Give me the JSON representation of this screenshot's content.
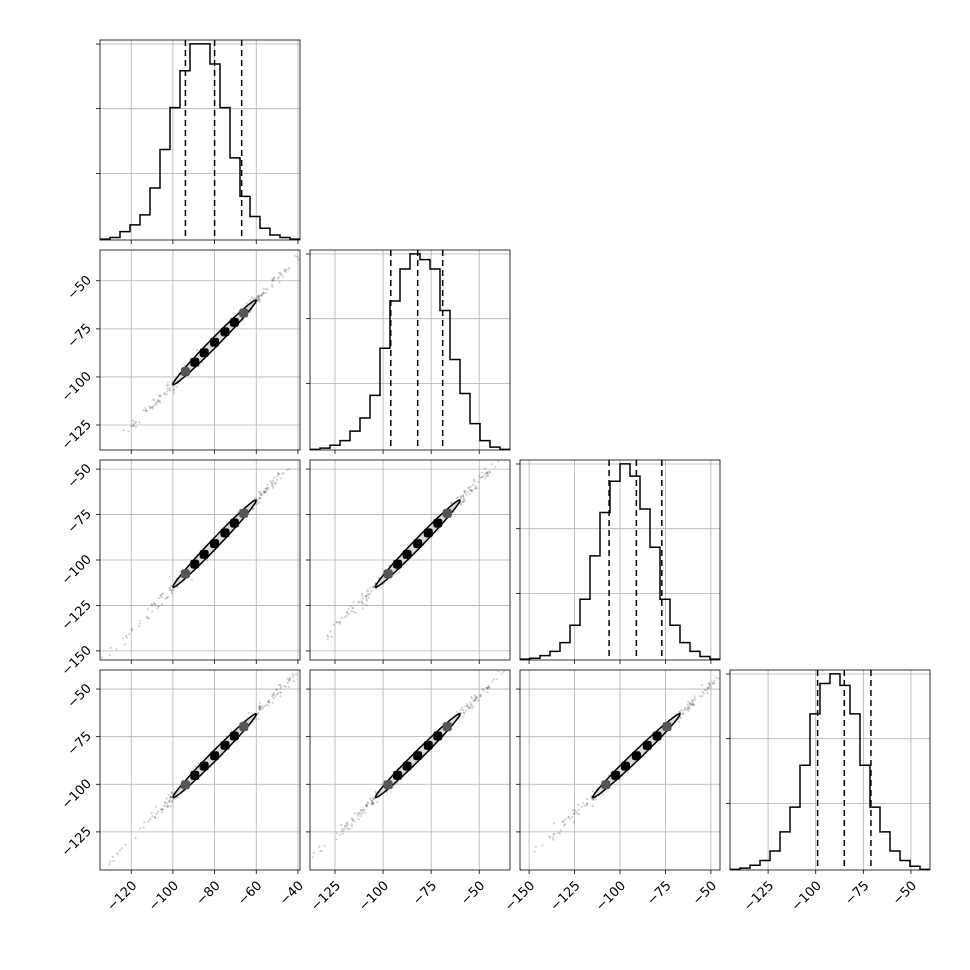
{
  "chart_data": {
    "type": "corner",
    "title": "",
    "parameters": [
      {
        "name": "",
        "center": -80,
        "sigma": 10,
        "hist_range": [
          -135,
          -39
        ],
        "ticks": [
          -120,
          -100,
          -80,
          -60,
          -40
        ],
        "tick_labels": [
          "−120",
          "−100",
          "−80",
          "−60",
          "−40"
        ],
        "quantiles": [
          -94,
          -80,
          -67
        ]
      },
      {
        "name": "",
        "center": -82,
        "sigma": 11,
        "hist_range": [
          -138,
          -34
        ],
        "ticks": [
          -125,
          -100,
          -75,
          -50
        ],
        "tick_labels": [
          "−125",
          "−100",
          "−75",
          "−50"
        ],
        "quantiles": [
          -96,
          -82,
          -69
        ]
      },
      {
        "name": "",
        "center": -91,
        "sigma": 12,
        "hist_range": [
          -155,
          -45
        ],
        "ticks": [
          -150,
          -125,
          -100,
          -75,
          -50
        ],
        "tick_labels": [
          "−150",
          "−125",
          "−100",
          "−75",
          "−50"
        ],
        "quantiles": [
          -106,
          -91,
          -77
        ]
      },
      {
        "name": "",
        "center": -85,
        "sigma": 11,
        "hist_range": [
          -145,
          -40
        ],
        "ticks": [
          -125,
          -100,
          -75,
          -50
        ],
        "tick_labels": [
          "−125",
          "−100",
          "−75",
          "−50"
        ],
        "quantiles": [
          -99,
          -85,
          -71
        ]
      }
    ],
    "histograms": [
      {
        "param": 0,
        "counts": [
          0.5,
          1.5,
          5,
          9,
          15,
          31,
          54,
          79,
          101,
          117,
          117,
          105,
          79,
          49,
          26,
          14,
          7,
          3,
          1.5,
          0.5
        ]
      },
      {
        "param": 1,
        "counts": [
          0.3,
          1,
          2.5,
          5,
          10,
          17,
          29,
          54,
          79,
          96,
          104,
          101,
          96,
          74,
          48,
          30,
          14,
          5,
          1.5,
          0.3
        ]
      },
      {
        "param": 2,
        "counts": [
          0.5,
          1,
          2.5,
          5,
          10,
          20,
          35,
          60,
          85,
          103,
          113,
          106,
          87,
          65,
          35,
          20,
          10,
          5,
          2,
          0.5
        ]
      },
      {
        "param": 3,
        "counts": [
          0.3,
          1,
          2.5,
          5,
          10,
          20,
          33,
          55,
          82,
          98,
          103,
          97,
          82,
          55,
          33,
          20,
          10,
          5,
          2,
          0.3
        ]
      }
    ],
    "correlation": 0.99,
    "contour_levels": [
      "0.393",
      "0.865"
    ],
    "grid": true
  }
}
